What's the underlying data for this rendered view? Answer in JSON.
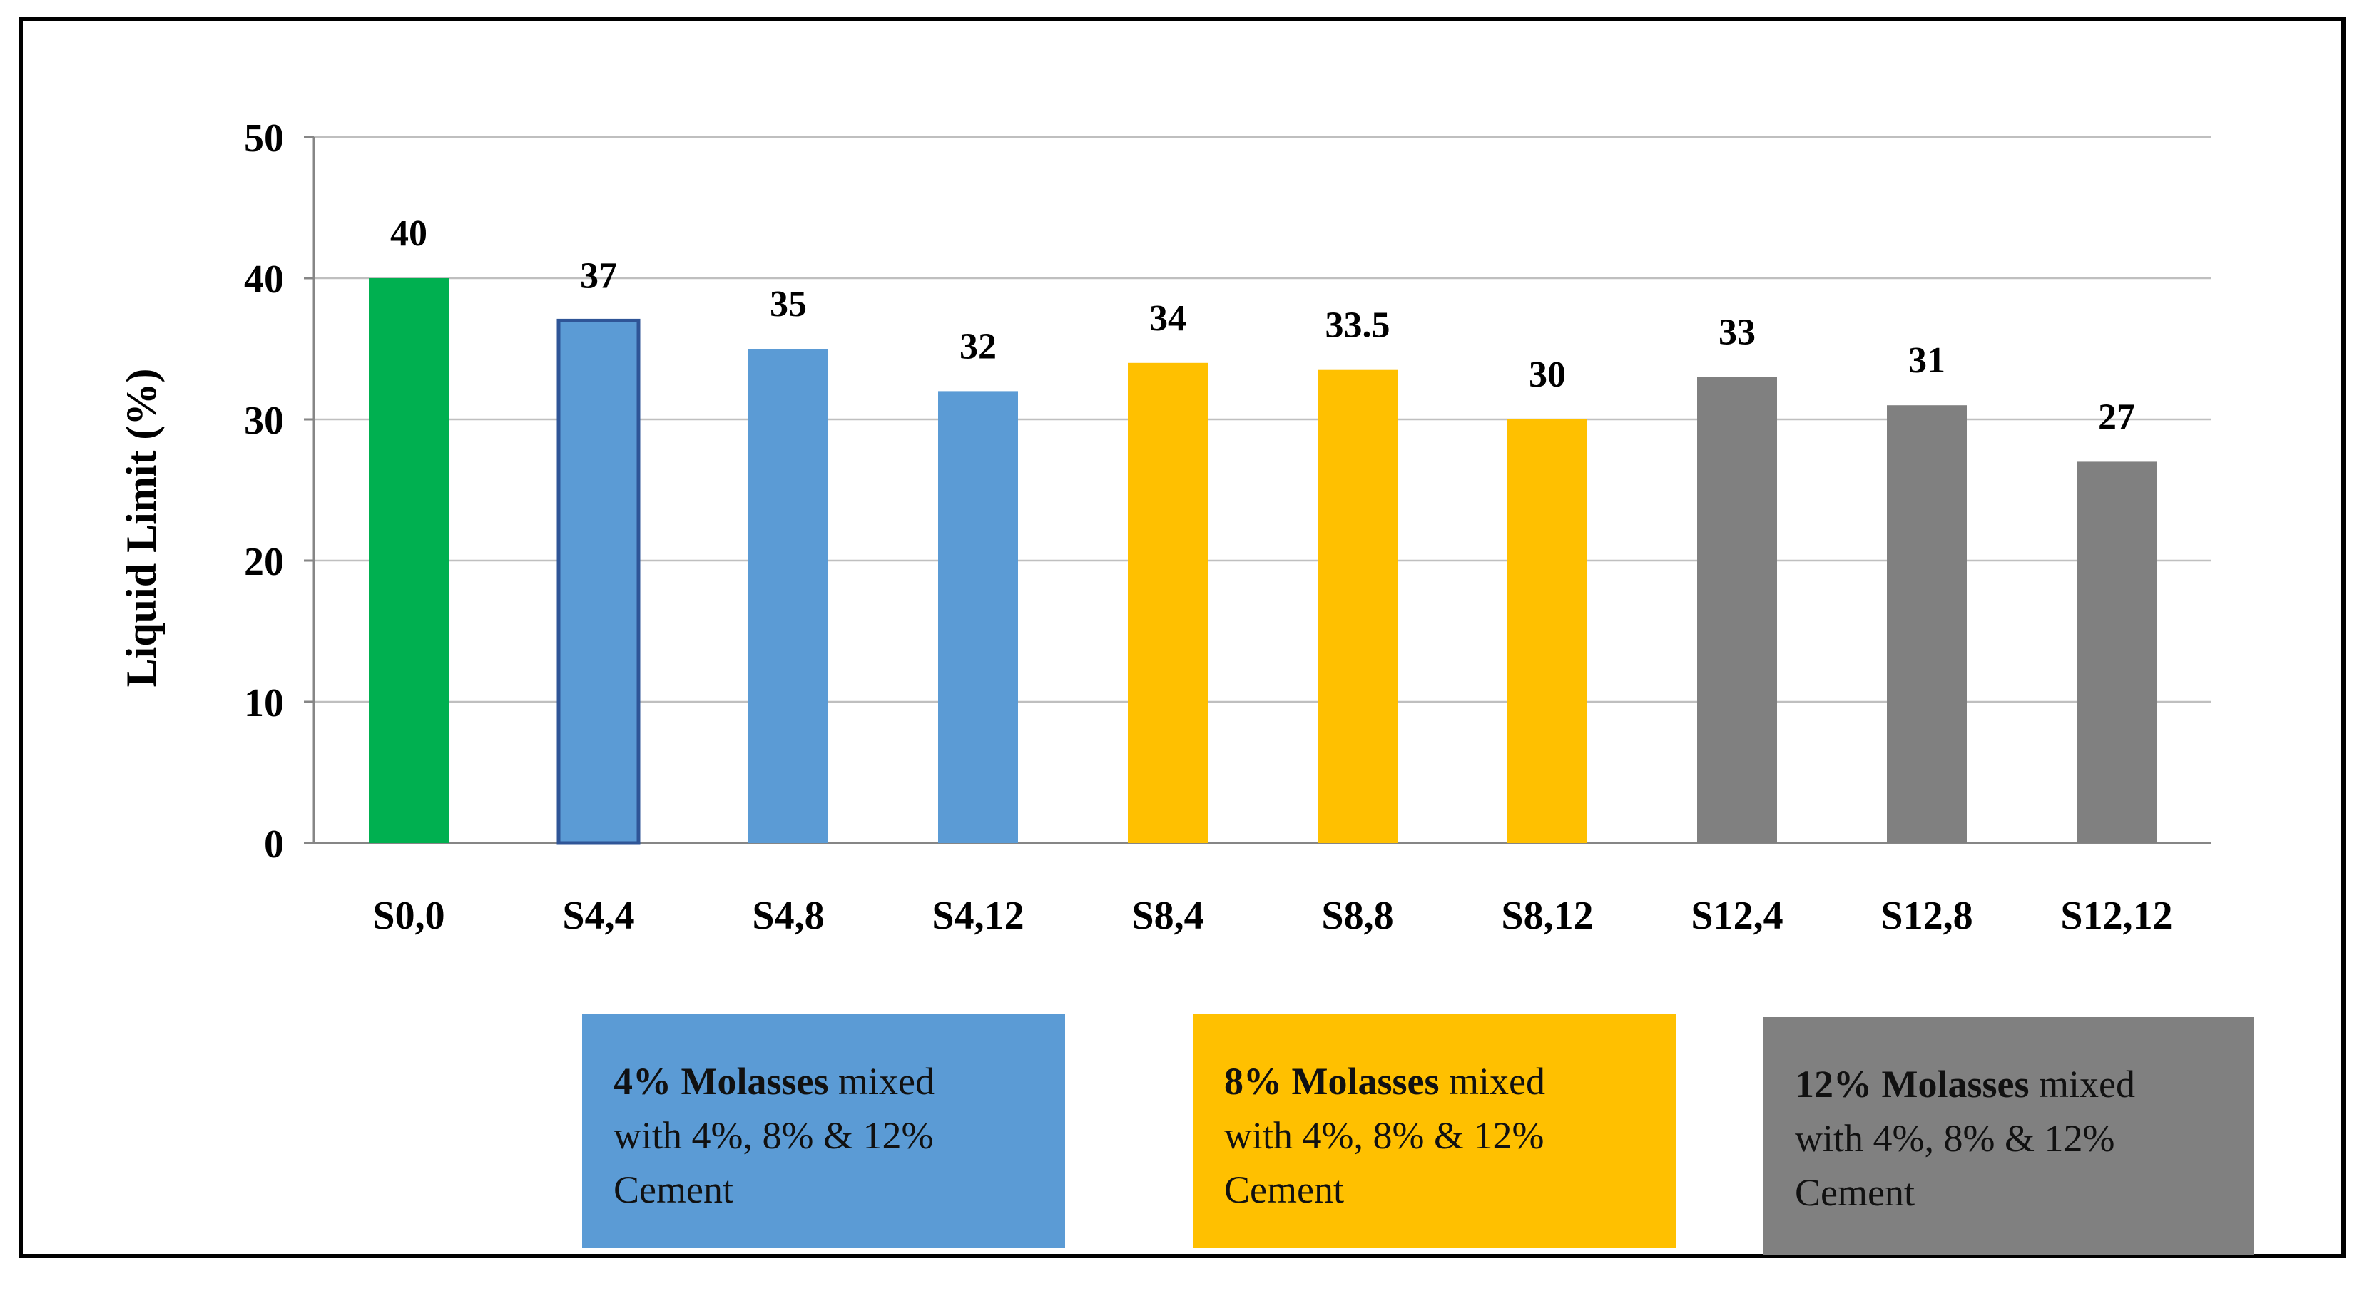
{
  "chart_data": {
    "type": "bar",
    "title": "",
    "xlabel": "",
    "ylabel": "Liquid Limit (%)",
    "ylim": [
      0,
      50
    ],
    "yticks": [
      0,
      10,
      20,
      30,
      40,
      50
    ],
    "grid": true,
    "categories": [
      "S0,0",
      "S4,4",
      "S4,8",
      "S4,12",
      "S8,4",
      "S8,8",
      "S8,12",
      "S12,4",
      "S12,8",
      "S12,12"
    ],
    "values": [
      40,
      37,
      35,
      32,
      34,
      33.5,
      30,
      33,
      31,
      27
    ],
    "value_labels": [
      "40",
      "37",
      "35",
      "32",
      "34",
      "33.5",
      "30",
      "33",
      "31",
      "27"
    ],
    "bar_groups": [
      "control",
      "m4",
      "m4",
      "m4",
      "m8",
      "m8",
      "m8",
      "m12",
      "m12",
      "m12"
    ],
    "group_colors": {
      "control": "#00B050",
      "m4": "#5B9BD5",
      "m8": "#FFC000",
      "m12": "#808080"
    },
    "highlight_outline_color": "#2F5597",
    "axis_color": "#868686",
    "grid_color": "#BFBFBF"
  },
  "legend": {
    "boxes": [
      {
        "group": "m4",
        "bold": "4% Molasses",
        "rest_line1": " mixed",
        "line2": "with 4%, 8% & 12%",
        "line3": "Cement",
        "color": "#5B9BD5"
      },
      {
        "group": "m8",
        "bold": "8% Molasses",
        "rest_line1": " mixed",
        "line2": "with 4%, 8% & 12%",
        "line3": "Cement",
        "color": "#FFC000"
      },
      {
        "group": "m12",
        "bold": "12% Molasses",
        "rest_line1": " mixed",
        "line2": "with 4%, 8% & 12%",
        "line3": "Cement",
        "color": "#808080"
      }
    ]
  }
}
